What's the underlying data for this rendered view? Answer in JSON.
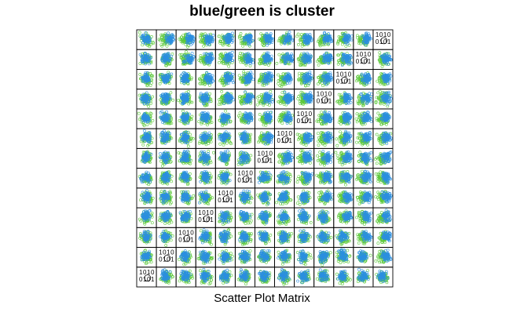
{
  "chart_data": {
    "type": "scatter",
    "title": "blue/green is cluster",
    "xlabel": "Scatter Plot Matrix",
    "ylabel": "",
    "grid": false,
    "legend": "none",
    "matrix_size": 13,
    "diagonal_tick_labels": [
      "1",
      "0",
      "1",
      "0",
      "0",
      "1",
      "0",
      "1"
    ],
    "series": [
      {
        "color": "#5cc93b"
      },
      {
        "color": "#2b8fe0"
      }
    ]
  },
  "colors": {
    "cluster_a": "#5cc93b",
    "cluster_b": "#2b8fe0",
    "panel_border": "#000000",
    "background": "#ffffff"
  }
}
